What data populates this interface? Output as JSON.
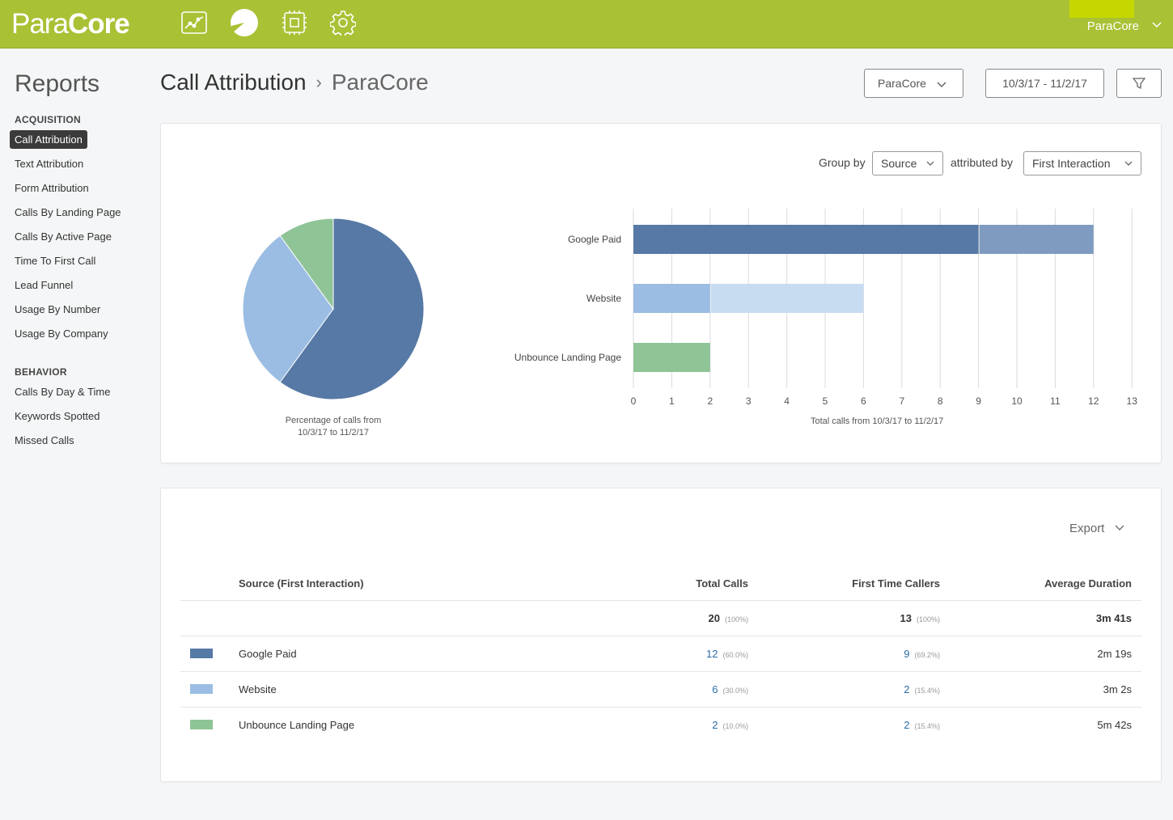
{
  "app": {
    "logo_part1": "Para",
    "logo_part2": "Core",
    "user_name": "ParaCore"
  },
  "nav_icons": [
    "analytics-chart-icon",
    "reports-pie-icon",
    "integrations-chip-icon",
    "settings-gear-icon"
  ],
  "sidebar": {
    "title": "Reports",
    "sections": [
      {
        "heading": "ACQUISITION",
        "items": [
          "Call Attribution",
          "Text Attribution",
          "Form Attribution",
          "Calls By Landing Page",
          "Calls By Active Page",
          "Time To First Call",
          "Lead Funnel",
          "Usage By Number",
          "Usage By Company"
        ]
      },
      {
        "heading": "BEHAVIOR",
        "items": [
          "Calls By Day & Time",
          "Keywords Spotted",
          "Missed Calls"
        ]
      }
    ],
    "active_item": "Call Attribution"
  },
  "header": {
    "title": "Call Attribution",
    "separator": "›",
    "subtitle": "ParaCore",
    "account_select": "ParaCore",
    "date_range": "10/3/17 - 11/2/17"
  },
  "controls": {
    "group_by_label": "Group by",
    "group_by_value": "Source",
    "attributed_by_label": "attributed by",
    "attributed_by_value": "First Interaction"
  },
  "colors": {
    "accent_green": "#a9c135",
    "google_paid": "#5779a5",
    "google_paid_light": "#7f9cc0",
    "website": "#9bbde3",
    "website_light": "#c8dcf1",
    "unbounce": "#8fc497"
  },
  "chart_data": [
    {
      "type": "pie",
      "caption_line1": "Percentage of calls from",
      "caption_line2": "10/3/17 to 11/2/17",
      "categories": [
        "Google Paid",
        "Website",
        "Unbounce Landing Page"
      ],
      "values": [
        12,
        6,
        2
      ]
    },
    {
      "type": "bar",
      "orientation": "horizontal",
      "stacked": true,
      "categories": [
        "Google Paid",
        "Website",
        "Unbounce Landing Page"
      ],
      "series": [
        {
          "values": [
            9,
            2,
            2
          ]
        },
        {
          "values": [
            3,
            4,
            0
          ]
        }
      ],
      "xlabel": "Total calls from 10/3/17 to 11/2/17",
      "xlim": [
        0,
        13
      ],
      "ticks": [
        "0",
        "1",
        "2",
        "3",
        "4",
        "5",
        "6",
        "7",
        "8",
        "9",
        "10",
        "11",
        "12",
        "13"
      ],
      "grid": true
    }
  ],
  "table": {
    "export_label": "Export",
    "headers": {
      "source": "Source (First Interaction)",
      "total_calls": "Total Calls",
      "first_time_callers": "First Time Callers",
      "avg_duration": "Average Duration"
    },
    "totals": {
      "total_calls": "20",
      "total_calls_pct": "(100%)",
      "first_time": "13",
      "first_time_pct": "(100%)",
      "avg_duration": "3m 41s"
    },
    "rows": [
      {
        "source": "Google Paid",
        "total_calls": "12",
        "total_pct": "(60.0%)",
        "first_time": "9",
        "first_pct": "(69.2%)",
        "avg_duration": "2m 19s"
      },
      {
        "source": "Website",
        "total_calls": "6",
        "total_pct": "(30.0%)",
        "first_time": "2",
        "first_pct": "(15.4%)",
        "avg_duration": "3m 2s"
      },
      {
        "source": "Unbounce Landing Page",
        "total_calls": "2",
        "total_pct": "(10.0%)",
        "first_time": "2",
        "first_pct": "(15.4%)",
        "avg_duration": "5m 42s"
      }
    ]
  }
}
